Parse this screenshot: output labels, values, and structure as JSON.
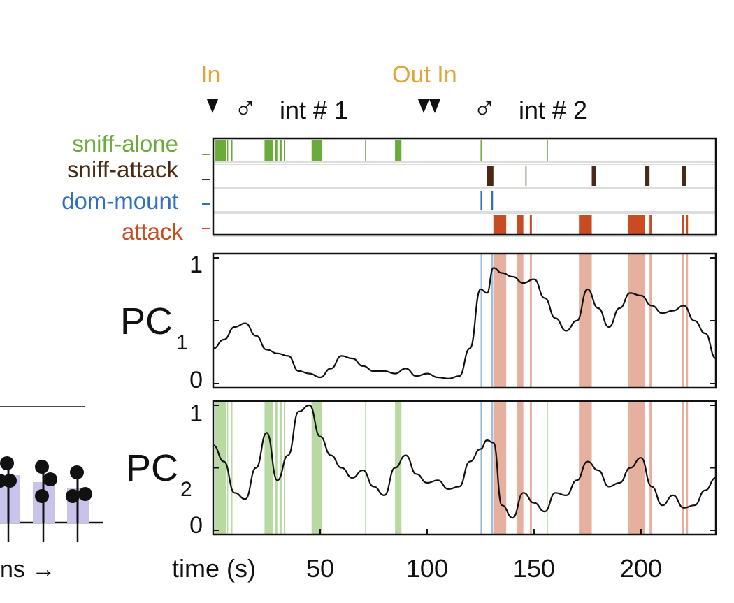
{
  "colors": {
    "sniff_alone": "#6aab3c",
    "sniff_attack": "#4a2a14",
    "dom_mount": "#2f6fc4",
    "attack": "#c84b22",
    "annotation": "#e0a43a",
    "trace": "#111111",
    "attack_shade": "#e2a28e",
    "sniff_shade": "#a8d08c",
    "mount_shade": "#8fb4e0",
    "inset_bar": "#c7c3ea"
  },
  "annotations": {
    "in_1": "In",
    "out_in": "Out In",
    "int_1": "int # 1",
    "int_2": "int # 2",
    "male_symbol": "♂"
  },
  "raster": {
    "rows": [
      {
        "key": "sniff_alone",
        "label": "sniff-alone"
      },
      {
        "key": "sniff_attack",
        "label": "sniff-attack"
      },
      {
        "key": "dom_mount",
        "label": "dom-mount"
      },
      {
        "key": "attack",
        "label": "attack"
      }
    ]
  },
  "inset": {
    "xlabel_fragment": "ns →"
  },
  "chart_data": [
    {
      "type": "raster",
      "x_range": [
        0,
        235
      ],
      "events": {
        "sniff_alone": [
          [
            1,
            6
          ],
          [
            6.5,
            7
          ],
          [
            8.5,
            9
          ],
          [
            24,
            28
          ],
          [
            29,
            30
          ],
          [
            31,
            32
          ],
          [
            33,
            33.5
          ],
          [
            46,
            51
          ],
          [
            71,
            71.3
          ],
          [
            85,
            88
          ],
          [
            125,
            125.3
          ],
          [
            156,
            156.3
          ]
        ],
        "sniff_attack": [
          [
            128,
            131
          ],
          [
            146,
            146.3
          ],
          [
            177,
            179
          ],
          [
            202,
            204
          ],
          [
            219,
            221
          ]
        ],
        "dom_mount": [
          [
            125,
            126
          ],
          [
            130,
            131
          ]
        ],
        "attack": [
          [
            131,
            137
          ],
          [
            142,
            145
          ],
          [
            148,
            149
          ],
          [
            171,
            177
          ],
          [
            194,
            202
          ],
          [
            204,
            205
          ],
          [
            219,
            220
          ],
          [
            221,
            222
          ]
        ]
      }
    },
    {
      "type": "line",
      "ylabel": "PC",
      "ylabel_sub": "1",
      "ylim": [
        0,
        1
      ],
      "yticks": [
        "0",
        "1"
      ],
      "x": [
        0,
        5,
        10,
        15,
        20,
        25,
        30,
        35,
        40,
        45,
        50,
        55,
        60,
        65,
        70,
        75,
        80,
        85,
        90,
        95,
        100,
        105,
        110,
        115,
        120,
        125,
        128,
        131,
        135,
        140,
        145,
        150,
        155,
        160,
        165,
        170,
        175,
        180,
        185,
        190,
        195,
        200,
        205,
        210,
        215,
        220,
        225,
        230,
        235
      ],
      "y": [
        0.28,
        0.35,
        0.45,
        0.48,
        0.38,
        0.27,
        0.24,
        0.22,
        0.1,
        0.08,
        0.05,
        0.12,
        0.22,
        0.2,
        0.14,
        0.1,
        0.1,
        0.08,
        0.12,
        0.06,
        0.08,
        0.05,
        0.04,
        0.06,
        0.28,
        0.75,
        0.72,
        0.92,
        0.88,
        0.85,
        0.8,
        0.83,
        0.68,
        0.52,
        0.42,
        0.5,
        0.75,
        0.6,
        0.45,
        0.6,
        0.72,
        0.7,
        0.62,
        0.56,
        0.58,
        0.62,
        0.5,
        0.4,
        0.2
      ]
    },
    {
      "type": "line",
      "ylabel": "PC",
      "ylabel_sub": "2",
      "ylim": [
        0,
        1
      ],
      "yticks": [
        "0",
        "1"
      ],
      "x": [
        0,
        5,
        10,
        15,
        20,
        25,
        30,
        35,
        40,
        45,
        50,
        55,
        60,
        65,
        70,
        75,
        80,
        85,
        90,
        95,
        100,
        105,
        110,
        115,
        120,
        125,
        128,
        131,
        135,
        140,
        145,
        150,
        155,
        160,
        165,
        170,
        175,
        180,
        185,
        190,
        195,
        200,
        205,
        210,
        215,
        220,
        225,
        230,
        235
      ],
      "y": [
        0.68,
        0.55,
        0.3,
        0.25,
        0.5,
        0.78,
        0.4,
        0.6,
        0.95,
        1.0,
        0.75,
        0.6,
        0.5,
        0.42,
        0.48,
        0.35,
        0.28,
        0.5,
        0.6,
        0.45,
        0.38,
        0.4,
        0.33,
        0.35,
        0.55,
        0.65,
        0.72,
        0.7,
        0.2,
        0.1,
        0.3,
        0.22,
        0.15,
        0.3,
        0.28,
        0.4,
        0.55,
        0.48,
        0.35,
        0.38,
        0.5,
        0.58,
        0.35,
        0.2,
        0.28,
        0.18,
        0.2,
        0.32,
        0.42
      ]
    }
  ],
  "x_axis": {
    "title": "time (s)",
    "ticks": [
      {
        "v": 50,
        "label": "50"
      },
      {
        "v": 100,
        "label": "100"
      },
      {
        "v": 150,
        "label": "150"
      },
      {
        "v": 200,
        "label": "200"
      }
    ]
  }
}
